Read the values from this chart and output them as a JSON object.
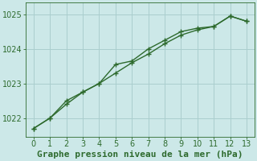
{
  "line1_x": [
    0,
    1,
    2,
    3,
    4,
    5,
    6,
    7,
    8,
    9,
    10,
    11,
    12,
    13
  ],
  "line1_y": [
    1021.7,
    1022.0,
    1022.4,
    1022.75,
    1023.0,
    1023.3,
    1023.6,
    1023.85,
    1024.15,
    1024.4,
    1024.55,
    1024.65,
    1024.95,
    1024.8
  ],
  "line2_x": [
    0,
    1,
    2,
    3,
    4,
    5,
    6,
    7,
    8,
    9,
    10,
    11,
    12,
    13
  ],
  "line2_y": [
    1021.7,
    1022.0,
    1022.5,
    1022.75,
    1023.0,
    1023.55,
    1023.65,
    1024.0,
    1024.25,
    1024.5,
    1024.6,
    1024.65,
    1024.95,
    1024.8
  ],
  "line_color": "#2d6a2d",
  "bg_color": "#cce8e8",
  "grid_color": "#aacece",
  "xlabel": "Graphe pression niveau de la mer (hPa)",
  "xlabel_color": "#2d6a2d",
  "xlabel_fontsize": 8,
  "ylim": [
    1021.45,
    1025.35
  ],
  "xlim": [
    -0.5,
    13.5
  ],
  "yticks": [
    1022,
    1023,
    1024,
    1025
  ],
  "xticks": [
    0,
    1,
    2,
    3,
    4,
    5,
    6,
    7,
    8,
    9,
    10,
    11,
    12,
    13
  ],
  "tick_color": "#2d6a2d",
  "tick_fontsize": 7,
  "marker": "+",
  "marker_size": 4,
  "line_width": 1.0
}
